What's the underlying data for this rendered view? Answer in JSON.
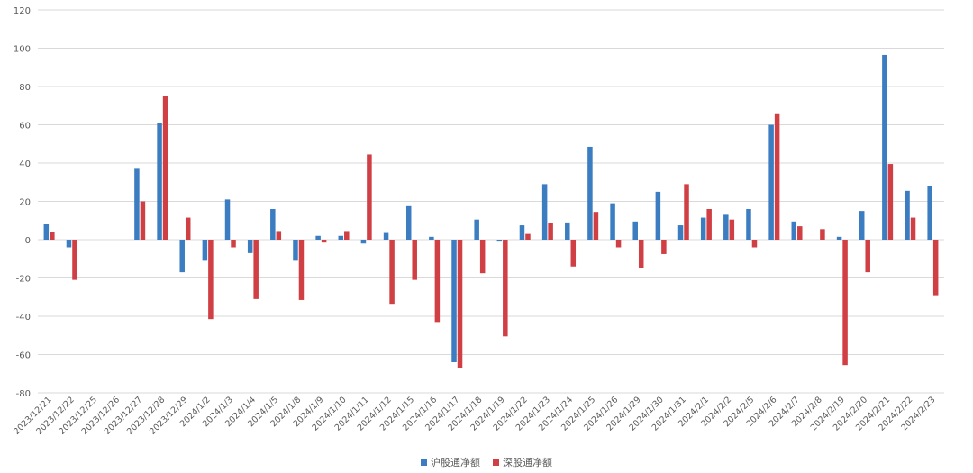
{
  "chart_data": {
    "type": "bar",
    "title": "",
    "xlabel": "",
    "ylabel": "",
    "ylim": [
      -80,
      120
    ],
    "yticks": [
      -80,
      -60,
      -40,
      -20,
      0,
      20,
      40,
      60,
      80,
      100,
      120
    ],
    "grid": true,
    "legend_position": "bottom",
    "categories": [
      "2023/12/21",
      "2023/12/22",
      "2023/12/25",
      "2023/12/26",
      "2023/12/27",
      "2023/12/28",
      "2023/12/29",
      "2024/1/2",
      "2024/1/3",
      "2024/1/4",
      "2024/1/5",
      "2024/1/8",
      "2024/1/9",
      "2024/1/10",
      "2024/1/11",
      "2024/1/12",
      "2024/1/15",
      "2024/1/16",
      "2024/1/17",
      "2024/1/18",
      "2024/1/19",
      "2024/1/22",
      "2024/1/23",
      "2024/1/24",
      "2024/1/25",
      "2024/1/26",
      "2024/1/29",
      "2024/1/30",
      "2024/1/31",
      "2024/2/1",
      "2024/2/2",
      "2024/2/5",
      "2024/2/6",
      "2024/2/7",
      "2024/2/8",
      "2024/2/19",
      "2024/2/20",
      "2024/2/21",
      "2024/2/22",
      "2024/2/23"
    ],
    "series": [
      {
        "name": "沪股通净额",
        "color": "#3b7dc0",
        "values": [
          8,
          -4,
          0,
          0,
          37,
          61,
          -17,
          -11,
          21,
          -7,
          16,
          -11,
          2,
          2,
          -2,
          3.5,
          17.5,
          1.5,
          -64,
          10.5,
          -1,
          7.5,
          29,
          9,
          48.5,
          19,
          9.5,
          25,
          7.5,
          11.5,
          13,
          16,
          60,
          9.5,
          0,
          1.5,
          15,
          96.5,
          25.5,
          28
        ]
      },
      {
        "name": "深股通净额",
        "color": "#d03f43",
        "values": [
          4,
          -21,
          0,
          0,
          20,
          75,
          11.5,
          -41.5,
          -4,
          -31,
          4.5,
          -31.5,
          -1.5,
          4.5,
          44.5,
          -33.5,
          -21,
          -43,
          -67,
          -17.5,
          -50.5,
          3,
          8.5,
          -14,
          14.5,
          -4,
          -15,
          -7.5,
          29,
          16,
          10.5,
          -4,
          66,
          7,
          5.5,
          -65.5,
          -17,
          39.5,
          11.5,
          -29
        ]
      }
    ]
  }
}
